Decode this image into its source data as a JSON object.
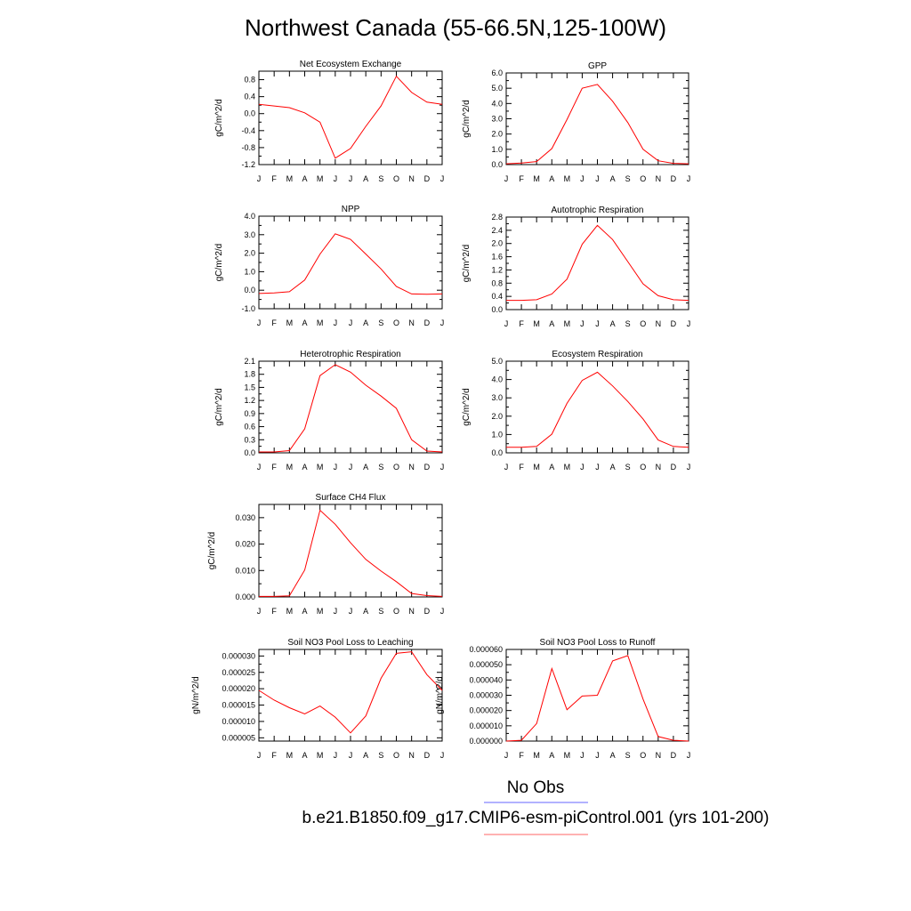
{
  "figure": {
    "title": "Northwest Canada (55-66.5N,125-100W)"
  },
  "legend": {
    "items": [
      {
        "label": "No Obs",
        "color": "#6666ff"
      },
      {
        "label": "b.e21.B1850.f09_g17.CMIP6-esm-piControl.001 (yrs 101-200)",
        "color": "#ff6666"
      }
    ]
  },
  "chart_data": [
    {
      "type": "line",
      "title": "Net Ecosystem Exchange",
      "ylabel": "gC/m^2/d",
      "categories": [
        "J",
        "F",
        "M",
        "A",
        "M",
        "J",
        "J",
        "A",
        "S",
        "O",
        "N",
        "D",
        "J"
      ],
      "ylim": [
        -1.2,
        1.0
      ],
      "yticks": [
        "0.8",
        "0.4",
        "0.0",
        "-0.4",
        "-0.8",
        "-1.2"
      ],
      "ytick_values": [
        0.8,
        0.4,
        0.0,
        -0.4,
        -0.8,
        -1.2
      ],
      "series": [
        {
          "color": "#ff0000",
          "values": [
            0.22,
            0.18,
            0.14,
            0.02,
            -0.2,
            -1.05,
            -0.82,
            -0.3,
            0.18,
            0.88,
            0.5,
            0.27,
            0.22
          ]
        }
      ]
    },
    {
      "type": "line",
      "title": "GPP",
      "ylabel": "gC/m^2/d",
      "categories": [
        "J",
        "F",
        "M",
        "A",
        "M",
        "J",
        "J",
        "A",
        "S",
        "O",
        "N",
        "D",
        "J"
      ],
      "ylim": [
        0.0,
        6.0
      ],
      "yticks": [
        "6.0",
        "5.0",
        "4.0",
        "3.0",
        "2.0",
        "1.0",
        "0.0"
      ],
      "ytick_values": [
        6,
        5,
        4,
        3,
        2,
        1,
        0
      ],
      "series": [
        {
          "color": "#ff0000",
          "values": [
            0.05,
            0.1,
            0.2,
            1.05,
            2.95,
            5.0,
            5.25,
            4.15,
            2.75,
            1.0,
            0.25,
            0.08,
            0.05
          ]
        }
      ]
    },
    {
      "type": "line",
      "title": "NPP",
      "ylabel": "gC/m^2/d",
      "categories": [
        "J",
        "F",
        "M",
        "A",
        "M",
        "J",
        "J",
        "A",
        "S",
        "O",
        "N",
        "D",
        "J"
      ],
      "ylim": [
        -1.0,
        4.0
      ],
      "yticks": [
        "4.0",
        "3.0",
        "2.0",
        "1.0",
        "0.0",
        "-1.0"
      ],
      "ytick_values": [
        4,
        3,
        2,
        1,
        0,
        -1
      ],
      "series": [
        {
          "color": "#ff0000",
          "values": [
            -0.18,
            -0.15,
            -0.08,
            0.55,
            1.95,
            3.05,
            2.75,
            1.95,
            1.15,
            0.2,
            -0.2,
            -0.22,
            -0.2
          ]
        }
      ]
    },
    {
      "type": "line",
      "title": "Autotrophic Respiration",
      "ylabel": "gC/m^2/d",
      "categories": [
        "J",
        "F",
        "M",
        "A",
        "M",
        "J",
        "J",
        "A",
        "S",
        "O",
        "N",
        "D",
        "J"
      ],
      "ylim": [
        0.0,
        2.8
      ],
      "yticks": [
        "2.8",
        "2.4",
        "2.0",
        "1.6",
        "1.2",
        "0.8",
        "0.4",
        "0.0"
      ],
      "ytick_values": [
        2.8,
        2.4,
        2.0,
        1.6,
        1.2,
        0.8,
        0.4,
        0.0
      ],
      "series": [
        {
          "color": "#ff0000",
          "values": [
            0.28,
            0.28,
            0.3,
            0.47,
            0.92,
            1.98,
            2.55,
            2.12,
            1.45,
            0.78,
            0.42,
            0.3,
            0.28
          ]
        }
      ]
    },
    {
      "type": "line",
      "title": "Heterotrophic Respiration",
      "ylabel": "gC/m^2/d",
      "categories": [
        "J",
        "F",
        "M",
        "A",
        "M",
        "J",
        "J",
        "A",
        "S",
        "O",
        "N",
        "D",
        "J"
      ],
      "ylim": [
        0.0,
        2.1
      ],
      "yticks": [
        "2.1",
        "1.8",
        "1.5",
        "1.2",
        "0.9",
        "0.6",
        "0.3",
        "0.0"
      ],
      "ytick_values": [
        2.1,
        1.8,
        1.5,
        1.2,
        0.9,
        0.6,
        0.3,
        0.0
      ],
      "series": [
        {
          "color": "#ff0000",
          "values": [
            0.02,
            0.02,
            0.05,
            0.55,
            1.77,
            2.02,
            1.85,
            1.55,
            1.3,
            1.02,
            0.3,
            0.04,
            0.02
          ]
        }
      ]
    },
    {
      "type": "line",
      "title": "Ecosystem Respiration",
      "ylabel": "gC/m^2/d",
      "categories": [
        "J",
        "F",
        "M",
        "A",
        "M",
        "J",
        "J",
        "A",
        "S",
        "O",
        "N",
        "D",
        "J"
      ],
      "ylim": [
        0.0,
        5.0
      ],
      "yticks": [
        "5.0",
        "4.0",
        "3.0",
        "2.0",
        "1.0",
        "0.0"
      ],
      "ytick_values": [
        5,
        4,
        3,
        2,
        1,
        0
      ],
      "series": [
        {
          "color": "#ff0000",
          "values": [
            0.3,
            0.3,
            0.35,
            1.02,
            2.7,
            3.95,
            4.4,
            3.65,
            2.8,
            1.85,
            0.7,
            0.35,
            0.3
          ]
        }
      ]
    },
    {
      "type": "line",
      "title": "Surface CH4 Flux",
      "ylabel": "gC/m^2/d",
      "categories": [
        "J",
        "F",
        "M",
        "A",
        "M",
        "J",
        "J",
        "A",
        "S",
        "O",
        "N",
        "D",
        "J"
      ],
      "ylim": [
        0.0,
        0.035
      ],
      "yticks": [
        "0.030",
        "0.020",
        "0.010",
        "0.000"
      ],
      "ytick_values": [
        0.03,
        0.02,
        0.01,
        0.0
      ],
      "series": [
        {
          "color": "#ff0000",
          "values": [
            0.0002,
            0.0002,
            0.0004,
            0.0102,
            0.0328,
            0.0275,
            0.0205,
            0.0142,
            0.0098,
            0.0058,
            0.0013,
            0.0005,
            0.0002
          ]
        }
      ]
    },
    {
      "type": "line",
      "title": "Soil NO3 Pool Loss to Leaching",
      "ylabel": "gN/m^2/d",
      "categories": [
        "J",
        "F",
        "M",
        "A",
        "M",
        "J",
        "J",
        "A",
        "S",
        "O",
        "N",
        "D",
        "J"
      ],
      "ylim": [
        4e-06,
        3.2e-05
      ],
      "yticks": [
        "0.000030",
        "0.000025",
        "0.000020",
        "0.000015",
        "0.000010",
        "0.000005"
      ],
      "ytick_values": [
        3e-05,
        2.5e-05,
        2e-05,
        1.5e-05,
        1e-05,
        5e-06
      ],
      "series": [
        {
          "color": "#ff0000",
          "values": [
            1.95e-05,
            1.65e-05,
            1.42e-05,
            1.23e-05,
            1.47e-05,
            1.13e-05,
            6.5e-06,
            1.17e-05,
            2.32e-05,
            3.08e-05,
            3.13e-05,
            2.43e-05,
            1.95e-05
          ]
        }
      ]
    },
    {
      "type": "line",
      "title": "Soil NO3 Pool Loss to Runoff",
      "ylabel": "gN/m^2/d",
      "categories": [
        "J",
        "F",
        "M",
        "A",
        "M",
        "J",
        "J",
        "A",
        "S",
        "O",
        "N",
        "D",
        "J"
      ],
      "ylim": [
        0.0,
        6e-05
      ],
      "yticks": [
        "0.000060",
        "0.000050",
        "0.000040",
        "0.000030",
        "0.000020",
        "0.000010",
        "0.000000"
      ],
      "ytick_values": [
        6e-05,
        5e-05,
        4e-05,
        3e-05,
        2e-05,
        1e-05,
        0.0
      ],
      "series": [
        {
          "color": "#ff0000",
          "values": [
            0.0,
            5e-07,
            1.15e-05,
            4.75e-05,
            2.05e-05,
            2.95e-05,
            3e-05,
            5.25e-05,
            5.6e-05,
            2.75e-05,
            3e-06,
            5e-07,
            0.0
          ]
        }
      ]
    }
  ]
}
